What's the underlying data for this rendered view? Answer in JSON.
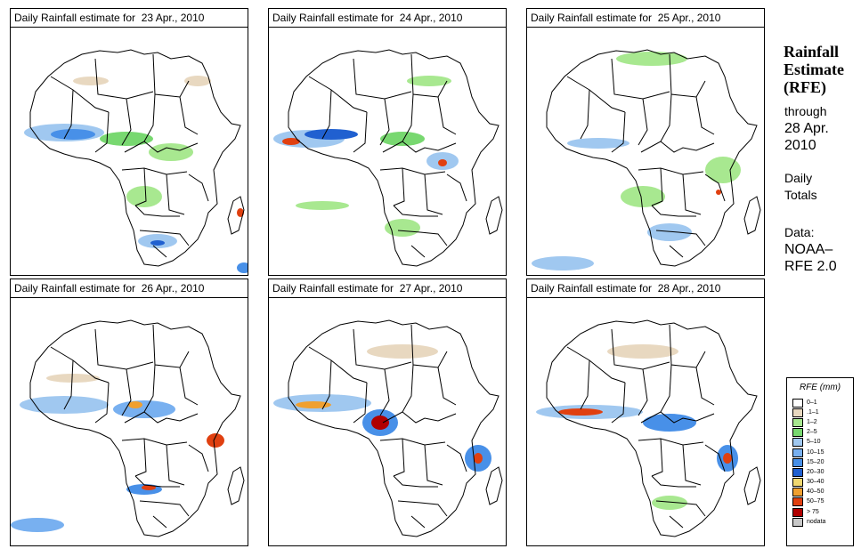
{
  "panels": [
    {
      "title": "Daily Rainfall estimate for  23 Apr., 2010"
    },
    {
      "title": "Daily Rainfall estimate for  24 Apr., 2010"
    },
    {
      "title": "Daily Rainfall estimate for  25 Apr., 2010"
    },
    {
      "title": "Daily Rainfall estimate for  26 Apr., 2010"
    },
    {
      "title": "Daily Rainfall estimate for  27 Apr., 2010"
    },
    {
      "title": "Daily Rainfall estimate for  28 Apr., 2010"
    }
  ],
  "sidebar": {
    "title_lines": [
      "Rainfall",
      "Estimate",
      "(RFE)"
    ],
    "through_lines": [
      "through",
      "28 Apr.",
      "2010"
    ],
    "totals_lines": [
      "Daily",
      "Totals"
    ],
    "data_lines": [
      "Data:",
      "NOAA–",
      "RFE 2.0"
    ]
  },
  "legend": {
    "title": "RFE (mm)",
    "items": [
      {
        "label": "0–1",
        "color": "#ffffff"
      },
      {
        "label": ".1–1",
        "color": "#e8d8c0"
      },
      {
        "label": "1–2",
        "color": "#a8e890"
      },
      {
        "label": "2–5",
        "color": "#78d870"
      },
      {
        "label": "5–10",
        "color": "#a0c8f0"
      },
      {
        "label": "10–15",
        "color": "#78b0f0"
      },
      {
        "label": "15–20",
        "color": "#4890e8"
      },
      {
        "label": "20–30",
        "color": "#2060d0"
      },
      {
        "label": "30–40",
        "color": "#f0d870"
      },
      {
        "label": "40–50",
        "color": "#f0a030"
      },
      {
        "label": "50–75",
        "color": "#e04010"
      },
      {
        "label": "> 75",
        "color": "#b00000"
      },
      {
        "label": "nodata",
        "color": "#c8c8c8"
      }
    ]
  }
}
